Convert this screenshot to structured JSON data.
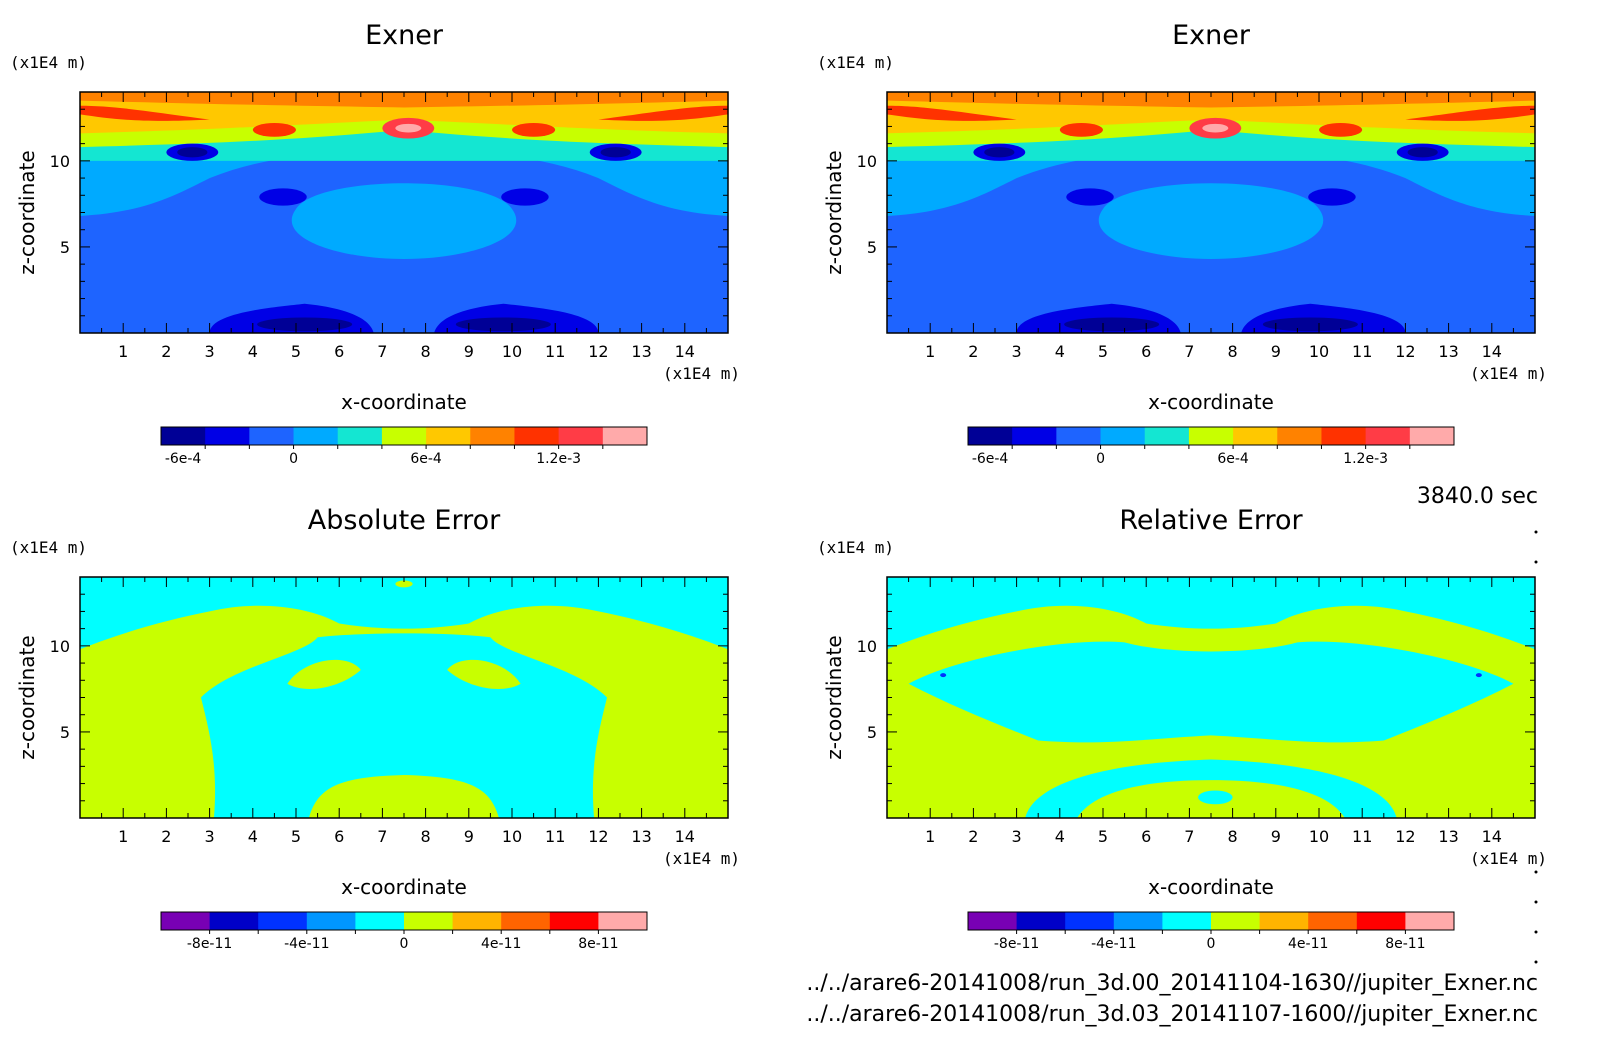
{
  "figure": {
    "time_label": "3840.0 sec",
    "files": [
      "../../arare6-20141008/run_3d.00_20141104-1630//jupiter_Exner.nc",
      "../../arare6-20141008/run_3d.03_20141107-1600//jupiter_Exner.nc"
    ]
  },
  "chart_data": [
    {
      "type": "heatmap",
      "title": "Exner",
      "xlabel": "x-coordinate",
      "ylabel": "z-coordinate",
      "x_unit": "(x1E4 m)",
      "y_unit": "(x1E4 m)",
      "xlim": [
        0,
        15
      ],
      "ylim": [
        0,
        14
      ],
      "x_ticks": [
        1,
        2,
        3,
        4,
        5,
        6,
        7,
        8,
        9,
        10,
        11,
        12,
        13,
        14
      ],
      "y_ticks": [
        5,
        10
      ],
      "colorbar": {
        "colors": [
          "#000096",
          "#0000e6",
          "#1e64ff",
          "#00aaff",
          "#14e6d2",
          "#c8ff00",
          "#ffc800",
          "#ff8200",
          "#ff3200",
          "#ff3c46",
          "#ffaaaa"
        ],
        "tick_labels": [
          "-6e-4",
          "0",
          "6e-4",
          "1.2e-3"
        ],
        "tick_index": [
          0.5,
          3,
          6,
          9
        ]
      }
    },
    {
      "type": "heatmap",
      "title": "Exner",
      "xlabel": "x-coordinate",
      "ylabel": "z-coordinate",
      "x_unit": "(x1E4 m)",
      "y_unit": "(x1E4 m)",
      "xlim": [
        0,
        15
      ],
      "ylim": [
        0,
        14
      ],
      "x_ticks": [
        1,
        2,
        3,
        4,
        5,
        6,
        7,
        8,
        9,
        10,
        11,
        12,
        13,
        14
      ],
      "y_ticks": [
        5,
        10
      ],
      "colorbar": {
        "colors": [
          "#000096",
          "#0000e6",
          "#1e64ff",
          "#00aaff",
          "#14e6d2",
          "#c8ff00",
          "#ffc800",
          "#ff8200",
          "#ff3200",
          "#ff3c46",
          "#ffaaaa"
        ],
        "tick_labels": [
          "-6e-4",
          "0",
          "6e-4",
          "1.2e-3"
        ],
        "tick_index": [
          0.5,
          3,
          6,
          9
        ]
      }
    },
    {
      "type": "heatmap",
      "title": "Absolute Error",
      "xlabel": "x-coordinate",
      "ylabel": "z-coordinate",
      "x_unit": "(x1E4 m)",
      "y_unit": "(x1E4 m)",
      "xlim": [
        0,
        15
      ],
      "ylim": [
        0,
        14
      ],
      "x_ticks": [
        1,
        2,
        3,
        4,
        5,
        6,
        7,
        8,
        9,
        10,
        11,
        12,
        13,
        14
      ],
      "y_ticks": [
        5,
        10
      ],
      "colorbar": {
        "colors": [
          "#7800b4",
          "#0000c8",
          "#0032ff",
          "#0096ff",
          "#00ffff",
          "#c8ff00",
          "#ffb400",
          "#ff6400",
          "#ff0000",
          "#ffaaaa"
        ],
        "tick_labels": [
          "-8e-11",
          "-4e-11",
          "0",
          "4e-11",
          "8e-11"
        ],
        "tick_index": [
          1,
          3,
          5,
          7,
          9
        ]
      }
    },
    {
      "type": "heatmap",
      "title": "Relative Error",
      "xlabel": "x-coordinate",
      "ylabel": "z-coordinate",
      "x_unit": "(x1E4 m)",
      "y_unit": "(x1E4 m)",
      "xlim": [
        0,
        15
      ],
      "ylim": [
        0,
        14
      ],
      "x_ticks": [
        1,
        2,
        3,
        4,
        5,
        6,
        7,
        8,
        9,
        10,
        11,
        12,
        13,
        14
      ],
      "y_ticks": [
        5,
        10
      ],
      "colorbar": {
        "colors": [
          "#7800b4",
          "#0000c8",
          "#0032ff",
          "#0096ff",
          "#00ffff",
          "#c8ff00",
          "#ffb400",
          "#ff6400",
          "#ff0000",
          "#ffaaaa"
        ],
        "tick_labels": [
          "-8e-11",
          "-4e-11",
          "0",
          "4e-11",
          "8e-11"
        ],
        "tick_index": [
          1,
          3,
          5,
          7,
          9
        ]
      }
    }
  ]
}
